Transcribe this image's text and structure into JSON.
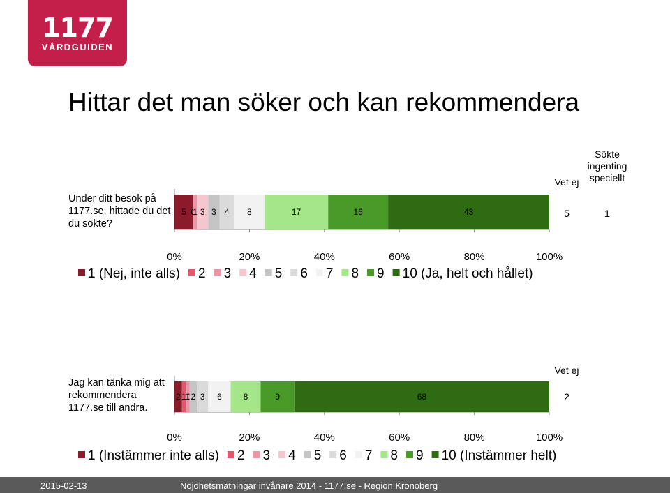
{
  "logo": {
    "number": "1177",
    "subtitle": "VÅRDGUIDEN"
  },
  "title": "Hittar det man söker och kan rekommendera",
  "colors": [
    "#8b1a2b",
    "#e5566d",
    "#eb95a5",
    "#f5c6ce",
    "#c5c5c5",
    "#dadada",
    "#f2f2f2",
    "#a6e68a",
    "#4a9a2a",
    "#2e6b12"
  ],
  "chart_data": [
    {
      "type": "bar",
      "orientation": "horizontal-stacked",
      "question": "Under ditt besök på 1177.se, hittade du det du sökte?",
      "series": [
        {
          "name": "1 (Nej, inte alls)",
          "value": 5
        },
        {
          "name": "2",
          "value": 0
        },
        {
          "name": "3",
          "value": 1
        },
        {
          "name": "4",
          "value": 3
        },
        {
          "name": "5",
          "value": 3
        },
        {
          "name": "6",
          "value": 4
        },
        {
          "name": "7",
          "value": 8
        },
        {
          "name": "8",
          "value": 17
        },
        {
          "name": "9",
          "value": 16
        },
        {
          "name": "10 (Ja, helt och hållet)",
          "value": 43
        }
      ],
      "extra": [
        {
          "label": "Vet ej",
          "value": "5"
        },
        {
          "label": "Sökte ingenting speciellt",
          "value": "1"
        }
      ],
      "ticks": [
        "0%",
        "20%",
        "40%",
        "60%",
        "80%",
        "100%"
      ],
      "legend": [
        "1 (Nej, inte alls)",
        "2",
        "3",
        "4",
        "5",
        "6",
        "7",
        "8",
        "9",
        "10 (Ja, helt och hållet)"
      ]
    },
    {
      "type": "bar",
      "orientation": "horizontal-stacked",
      "question": "Jag kan tänka mig att rekommendera 1177.se till andra.",
      "series": [
        {
          "name": "1 (Instämmer inte alls)",
          "value": 2
        },
        {
          "name": "2",
          "value": 1
        },
        {
          "name": "3",
          "value": 1
        },
        {
          "name": "4",
          "value": 0
        },
        {
          "name": "5",
          "value": 2
        },
        {
          "name": "6",
          "value": 3
        },
        {
          "name": "7",
          "value": 6
        },
        {
          "name": "8",
          "value": 8
        },
        {
          "name": "9",
          "value": 9
        },
        {
          "name": "10 (Instämmer helt)",
          "value": 68
        }
      ],
      "extra": [
        {
          "label": "Vet ej",
          "value": "2"
        }
      ],
      "ticks": [
        "0%",
        "20%",
        "40%",
        "60%",
        "80%",
        "100%"
      ],
      "legend": [
        "1 (Instämmer inte alls)",
        "2",
        "3",
        "4",
        "5",
        "6",
        "7",
        "8",
        "9",
        "10 (Instämmer helt)"
      ]
    }
  ],
  "footer": {
    "date": "2015-02-13",
    "text": "Nöjdhetsmätningar invånare 2014 - 1177.se - Region Kronoberg"
  }
}
